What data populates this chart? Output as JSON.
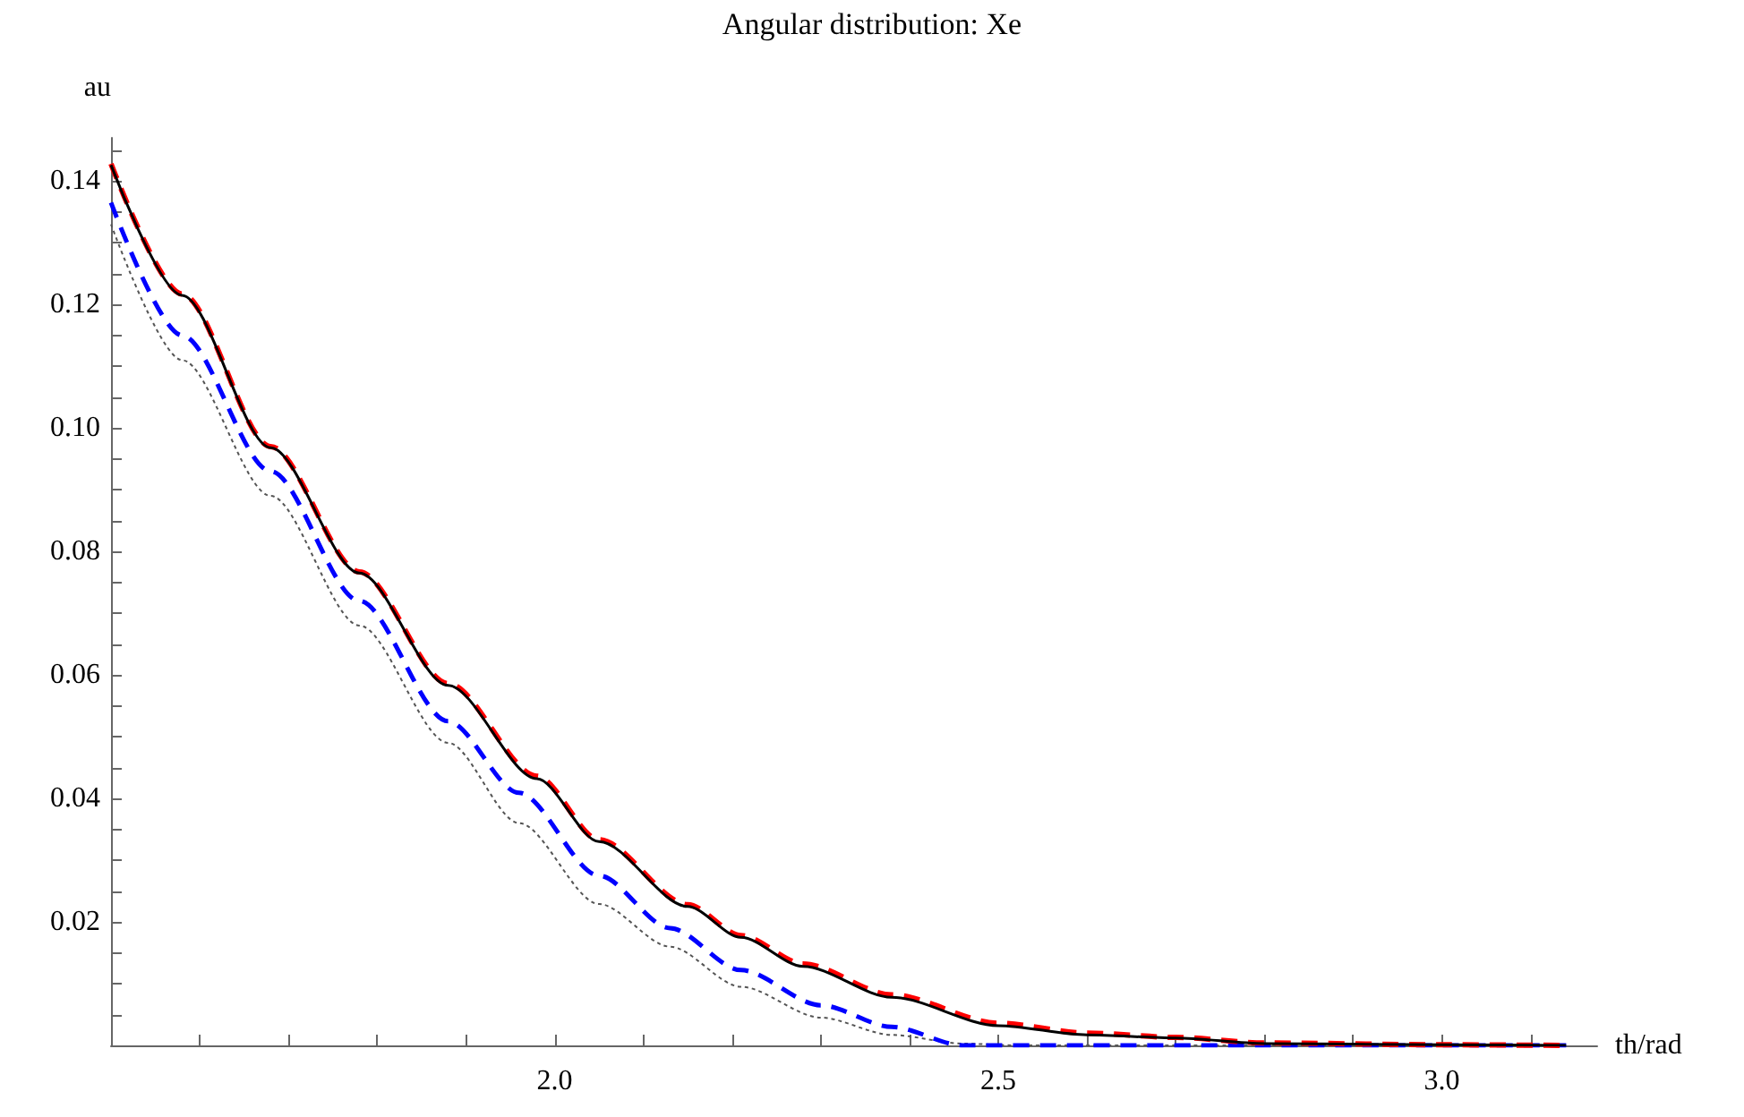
{
  "chart_data": {
    "type": "line",
    "title": "Angular distribution: Xe",
    "xlabel": "th/rad",
    "ylabel": "au",
    "xlim": [
      1.5,
      3.175
    ],
    "ylim": [
      0,
      0.147
    ],
    "xticks": [
      {
        "value": 1.6,
        "label": null
      },
      {
        "value": 1.7,
        "label": null
      },
      {
        "value": 1.8,
        "label": null
      },
      {
        "value": 1.9,
        "label": null
      },
      {
        "value": 2,
        "label": "2.0"
      },
      {
        "value": 2.1,
        "label": null
      },
      {
        "value": 2.2,
        "label": null
      },
      {
        "value": 2.3,
        "label": null
      },
      {
        "value": 2.4,
        "label": null
      },
      {
        "value": 2.5,
        "label": "2.5"
      },
      {
        "value": 2.6,
        "label": null
      },
      {
        "value": 2.7,
        "label": null
      },
      {
        "value": 2.8,
        "label": null
      },
      {
        "value": 2.9,
        "label": null
      },
      {
        "value": 3,
        "label": "3.0"
      },
      {
        "value": 3.1,
        "label": null
      }
    ],
    "yticks": [
      {
        "value": 0.005,
        "label": null
      },
      {
        "value": 0.01,
        "label": null
      },
      {
        "value": 0.015,
        "label": null
      },
      0.02,
      {
        "value": 0.025,
        "label": null
      },
      {
        "value": 0.03,
        "label": null
      },
      {
        "value": 0.035,
        "label": null
      },
      0.04,
      {
        "value": 0.045,
        "label": null
      },
      {
        "value": 0.05,
        "label": null
      },
      {
        "value": 0.055,
        "label": null
      },
      0.06,
      {
        "value": 0.065,
        "label": null
      },
      {
        "value": 0.07,
        "label": null
      },
      {
        "value": 0.075,
        "label": null
      },
      0.08,
      {
        "value": 0.085,
        "label": null
      },
      {
        "value": 0.09,
        "label": null
      },
      {
        "value": 0.095,
        "label": null
      },
      {
        "value": 0.1,
        "label": "0.10"
      },
      {
        "value": 0.105,
        "label": null
      },
      {
        "value": 0.11,
        "label": null
      },
      {
        "value": 0.115,
        "label": null
      },
      0.12,
      {
        "value": 0.125,
        "label": null
      },
      {
        "value": 0.13,
        "label": null
      },
      {
        "value": 0.135,
        "label": null
      },
      0.14,
      {
        "value": 0.145,
        "label": null
      }
    ],
    "grid": false,
    "marker": "none",
    "series": [
      {
        "color": "#000000",
        "line_style": "solid",
        "x": [
          1.5,
          1.58,
          1.68,
          1.78,
          1.88,
          1.98,
          2.05,
          2.15,
          2.21,
          2.28,
          2.38,
          2.5,
          2.6,
          2.7,
          2.8,
          3.0,
          3.14
        ],
        "values": [
          0.1426,
          0.1215,
          0.0968,
          0.0765,
          0.0583,
          0.0432,
          0.033,
          0.0225,
          0.0175,
          0.0128,
          0.0078,
          0.0032,
          0.0017,
          0.0012,
          0.0003,
          0.0001,
          0
        ]
      },
      {
        "color": "#ff0000",
        "line_style": "dashed",
        "x": [
          1.5,
          1.58,
          1.68,
          1.78,
          1.88,
          1.98,
          2.05,
          2.15,
          2.21,
          2.28,
          2.38,
          2.5,
          2.6,
          2.7,
          2.8,
          3.0,
          3.14
        ],
        "values": [
          0.1428,
          0.1217,
          0.097,
          0.0767,
          0.0586,
          0.0436,
          0.0333,
          0.0228,
          0.0178,
          0.0132,
          0.0082,
          0.0036,
          0.002,
          0.0013,
          0.0004,
          0.0001,
          0
        ]
      },
      {
        "color": "#0000ff",
        "line_style": "dashed",
        "x": [
          1.5,
          1.58,
          1.68,
          1.78,
          1.88,
          1.96,
          2.05,
          2.13,
          2.21,
          2.3,
          2.38,
          2.46,
          2.6,
          2.8,
          3.0,
          3.14
        ],
        "values": [
          0.1365,
          0.115,
          0.093,
          0.072,
          0.0525,
          0.0409,
          0.0275,
          0.019,
          0.0122,
          0.0065,
          0.003,
          0,
          0,
          0,
          0,
          0
        ]
      },
      {
        "color": "#555555",
        "line_style": "dotted",
        "x": [
          1.5,
          1.58,
          1.68,
          1.78,
          1.88,
          1.96,
          2.05,
          2.13,
          2.21,
          2.3,
          2.38,
          2.46,
          2.52,
          2.8,
          3.0,
          3.14
        ],
        "values": [
          0.133,
          0.111,
          0.089,
          0.068,
          0.049,
          0.036,
          0.0229,
          0.016,
          0.0095,
          0.0045,
          0.0017,
          0.0003,
          0,
          0,
          0,
          0
        ]
      }
    ]
  }
}
